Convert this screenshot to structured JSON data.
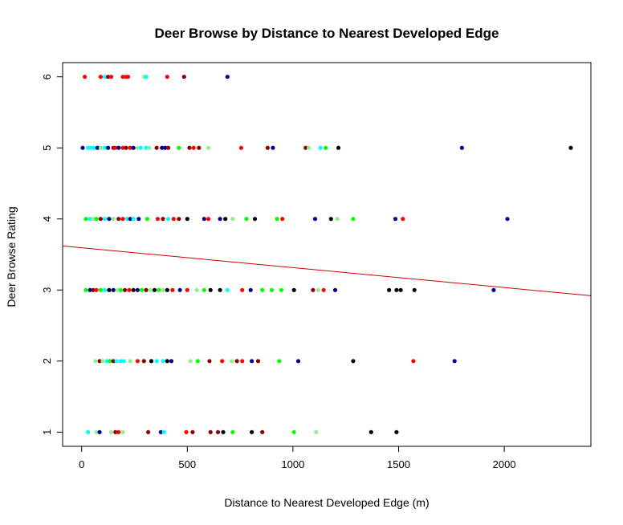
{
  "chart_data": {
    "type": "scatter",
    "title": "Deer Browse by Distance to Nearest Developed Edge",
    "xlabel": "Distance to Nearest Developed Edge (m)",
    "ylabel": "Deer Browse Rating",
    "xlim": [
      -90,
      2410
    ],
    "ylim": [
      0.8,
      6.2
    ],
    "xticks": [
      0,
      500,
      1000,
      1500,
      2000
    ],
    "yticks": [
      1,
      2,
      3,
      4,
      5,
      6
    ],
    "grid": false,
    "legend": "none",
    "regression_line": {
      "x": [
        -90,
        2410
      ],
      "y": [
        3.62,
        2.92
      ],
      "color": "#cc0000"
    },
    "colors": {
      "black": "#000000",
      "navy": "#00008b",
      "red": "#ff0000",
      "darkred": "#8b0000",
      "green": "#00ff00",
      "lightgreen": "#90ee90",
      "cyan": "#00ffff"
    },
    "points": [
      {
        "x": 15,
        "y": 6,
        "c": "red"
      },
      {
        "x": 90,
        "y": 6,
        "c": "red"
      },
      {
        "x": 110,
        "y": 6,
        "c": "cyan"
      },
      {
        "x": 125,
        "y": 6,
        "c": "darkred"
      },
      {
        "x": 140,
        "y": 6,
        "c": "red"
      },
      {
        "x": 195,
        "y": 6,
        "c": "red"
      },
      {
        "x": 210,
        "y": 6,
        "c": "red"
      },
      {
        "x": 220,
        "y": 6,
        "c": "red"
      },
      {
        "x": 295,
        "y": 6,
        "c": "lightgreen"
      },
      {
        "x": 305,
        "y": 6,
        "c": "cyan"
      },
      {
        "x": 405,
        "y": 6,
        "c": "red"
      },
      {
        "x": 485,
        "y": 6,
        "c": "darkred"
      },
      {
        "x": 690,
        "y": 6,
        "c": "navy"
      },
      {
        "x": 5,
        "y": 5,
        "c": "navy"
      },
      {
        "x": 30,
        "y": 5,
        "c": "cyan"
      },
      {
        "x": 45,
        "y": 5,
        "c": "cyan"
      },
      {
        "x": 60,
        "y": 5,
        "c": "cyan"
      },
      {
        "x": 75,
        "y": 5,
        "c": "navy"
      },
      {
        "x": 90,
        "y": 5,
        "c": "lightgreen"
      },
      {
        "x": 110,
        "y": 5,
        "c": "cyan"
      },
      {
        "x": 125,
        "y": 5,
        "c": "navy"
      },
      {
        "x": 150,
        "y": 5,
        "c": "darkred"
      },
      {
        "x": 160,
        "y": 5,
        "c": "red"
      },
      {
        "x": 175,
        "y": 5,
        "c": "navy"
      },
      {
        "x": 195,
        "y": 5,
        "c": "red"
      },
      {
        "x": 210,
        "y": 5,
        "c": "darkred"
      },
      {
        "x": 230,
        "y": 5,
        "c": "red"
      },
      {
        "x": 245,
        "y": 5,
        "c": "navy"
      },
      {
        "x": 265,
        "y": 5,
        "c": "lightgreen"
      },
      {
        "x": 280,
        "y": 5,
        "c": "cyan"
      },
      {
        "x": 305,
        "y": 5,
        "c": "cyan"
      },
      {
        "x": 320,
        "y": 5,
        "c": "lightgreen"
      },
      {
        "x": 355,
        "y": 5,
        "c": "darkred"
      },
      {
        "x": 380,
        "y": 5,
        "c": "navy"
      },
      {
        "x": 395,
        "y": 5,
        "c": "navy"
      },
      {
        "x": 410,
        "y": 5,
        "c": "darkred"
      },
      {
        "x": 460,
        "y": 5,
        "c": "green"
      },
      {
        "x": 510,
        "y": 5,
        "c": "darkred"
      },
      {
        "x": 530,
        "y": 5,
        "c": "red"
      },
      {
        "x": 555,
        "y": 5,
        "c": "darkred"
      },
      {
        "x": 600,
        "y": 5,
        "c": "lightgreen"
      },
      {
        "x": 755,
        "y": 5,
        "c": "red"
      },
      {
        "x": 880,
        "y": 5,
        "c": "darkred"
      },
      {
        "x": 905,
        "y": 5,
        "c": "navy"
      },
      {
        "x": 1060,
        "y": 5,
        "c": "darkred"
      },
      {
        "x": 1075,
        "y": 5,
        "c": "lightgreen"
      },
      {
        "x": 1130,
        "y": 5,
        "c": "cyan"
      },
      {
        "x": 1155,
        "y": 5,
        "c": "green"
      },
      {
        "x": 1215,
        "y": 5,
        "c": "black"
      },
      {
        "x": 1800,
        "y": 5,
        "c": "navy"
      },
      {
        "x": 2315,
        "y": 5,
        "c": "black"
      },
      {
        "x": 20,
        "y": 4,
        "c": "green"
      },
      {
        "x": 40,
        "y": 4,
        "c": "cyan"
      },
      {
        "x": 55,
        "y": 4,
        "c": "lightgreen"
      },
      {
        "x": 70,
        "y": 4,
        "c": "green"
      },
      {
        "x": 90,
        "y": 4,
        "c": "darkred"
      },
      {
        "x": 110,
        "y": 4,
        "c": "cyan"
      },
      {
        "x": 130,
        "y": 4,
        "c": "navy"
      },
      {
        "x": 150,
        "y": 4,
        "c": "lightgreen"
      },
      {
        "x": 175,
        "y": 4,
        "c": "darkred"
      },
      {
        "x": 195,
        "y": 4,
        "c": "red"
      },
      {
        "x": 215,
        "y": 4,
        "c": "cyan"
      },
      {
        "x": 230,
        "y": 4,
        "c": "navy"
      },
      {
        "x": 245,
        "y": 4,
        "c": "cyan"
      },
      {
        "x": 270,
        "y": 4,
        "c": "navy"
      },
      {
        "x": 310,
        "y": 4,
        "c": "green"
      },
      {
        "x": 360,
        "y": 4,
        "c": "red"
      },
      {
        "x": 385,
        "y": 4,
        "c": "darkred"
      },
      {
        "x": 410,
        "y": 4,
        "c": "cyan"
      },
      {
        "x": 435,
        "y": 4,
        "c": "red"
      },
      {
        "x": 460,
        "y": 4,
        "c": "darkred"
      },
      {
        "x": 500,
        "y": 4,
        "c": "black"
      },
      {
        "x": 580,
        "y": 4,
        "c": "navy"
      },
      {
        "x": 600,
        "y": 4,
        "c": "red"
      },
      {
        "x": 655,
        "y": 4,
        "c": "navy"
      },
      {
        "x": 680,
        "y": 4,
        "c": "black"
      },
      {
        "x": 715,
        "y": 4,
        "c": "lightgreen"
      },
      {
        "x": 780,
        "y": 4,
        "c": "green"
      },
      {
        "x": 820,
        "y": 4,
        "c": "black"
      },
      {
        "x": 925,
        "y": 4,
        "c": "green"
      },
      {
        "x": 950,
        "y": 4,
        "c": "red"
      },
      {
        "x": 1105,
        "y": 4,
        "c": "navy"
      },
      {
        "x": 1180,
        "y": 4,
        "c": "black"
      },
      {
        "x": 1210,
        "y": 4,
        "c": "lightgreen"
      },
      {
        "x": 1285,
        "y": 4,
        "c": "green"
      },
      {
        "x": 1485,
        "y": 4,
        "c": "navy"
      },
      {
        "x": 1520,
        "y": 4,
        "c": "red"
      },
      {
        "x": 2015,
        "y": 4,
        "c": "navy"
      },
      {
        "x": 20,
        "y": 3,
        "c": "green"
      },
      {
        "x": 40,
        "y": 3,
        "c": "navy"
      },
      {
        "x": 55,
        "y": 3,
        "c": "darkred"
      },
      {
        "x": 70,
        "y": 3,
        "c": "red"
      },
      {
        "x": 90,
        "y": 3,
        "c": "green"
      },
      {
        "x": 110,
        "y": 3,
        "c": "cyan"
      },
      {
        "x": 130,
        "y": 3,
        "c": "black"
      },
      {
        "x": 150,
        "y": 3,
        "c": "navy"
      },
      {
        "x": 170,
        "y": 3,
        "c": "lightgreen"
      },
      {
        "x": 185,
        "y": 3,
        "c": "green"
      },
      {
        "x": 205,
        "y": 3,
        "c": "darkred"
      },
      {
        "x": 225,
        "y": 3,
        "c": "red"
      },
      {
        "x": 245,
        "y": 3,
        "c": "black"
      },
      {
        "x": 265,
        "y": 3,
        "c": "navy"
      },
      {
        "x": 285,
        "y": 3,
        "c": "green"
      },
      {
        "x": 305,
        "y": 3,
        "c": "darkred"
      },
      {
        "x": 325,
        "y": 3,
        "c": "lightgreen"
      },
      {
        "x": 345,
        "y": 3,
        "c": "black"
      },
      {
        "x": 365,
        "y": 3,
        "c": "green"
      },
      {
        "x": 385,
        "y": 3,
        "c": "lightgreen"
      },
      {
        "x": 405,
        "y": 3,
        "c": "black"
      },
      {
        "x": 430,
        "y": 3,
        "c": "red"
      },
      {
        "x": 465,
        "y": 3,
        "c": "navy"
      },
      {
        "x": 500,
        "y": 3,
        "c": "red"
      },
      {
        "x": 545,
        "y": 3,
        "c": "lightgreen"
      },
      {
        "x": 580,
        "y": 3,
        "c": "green"
      },
      {
        "x": 610,
        "y": 3,
        "c": "black"
      },
      {
        "x": 655,
        "y": 3,
        "c": "black"
      },
      {
        "x": 690,
        "y": 3,
        "c": "cyan"
      },
      {
        "x": 760,
        "y": 3,
        "c": "red"
      },
      {
        "x": 800,
        "y": 3,
        "c": "navy"
      },
      {
        "x": 855,
        "y": 3,
        "c": "green"
      },
      {
        "x": 900,
        "y": 3,
        "c": "green"
      },
      {
        "x": 945,
        "y": 3,
        "c": "green"
      },
      {
        "x": 1005,
        "y": 3,
        "c": "black"
      },
      {
        "x": 1095,
        "y": 3,
        "c": "darkred"
      },
      {
        "x": 1120,
        "y": 3,
        "c": "lightgreen"
      },
      {
        "x": 1145,
        "y": 3,
        "c": "red"
      },
      {
        "x": 1200,
        "y": 3,
        "c": "navy"
      },
      {
        "x": 1455,
        "y": 3,
        "c": "black"
      },
      {
        "x": 1490,
        "y": 3,
        "c": "black"
      },
      {
        "x": 1510,
        "y": 3,
        "c": "black"
      },
      {
        "x": 1575,
        "y": 3,
        "c": "black"
      },
      {
        "x": 1950,
        "y": 3,
        "c": "navy"
      },
      {
        "x": 65,
        "y": 2,
        "c": "lightgreen"
      },
      {
        "x": 85,
        "y": 2,
        "c": "darkred"
      },
      {
        "x": 100,
        "y": 2,
        "c": "lightgreen"
      },
      {
        "x": 120,
        "y": 2,
        "c": "cyan"
      },
      {
        "x": 135,
        "y": 2,
        "c": "green"
      },
      {
        "x": 150,
        "y": 2,
        "c": "darkred"
      },
      {
        "x": 165,
        "y": 2,
        "c": "cyan"
      },
      {
        "x": 185,
        "y": 2,
        "c": "cyan"
      },
      {
        "x": 200,
        "y": 2,
        "c": "cyan"
      },
      {
        "x": 230,
        "y": 2,
        "c": "lightgreen"
      },
      {
        "x": 265,
        "y": 2,
        "c": "red"
      },
      {
        "x": 295,
        "y": 2,
        "c": "darkred"
      },
      {
        "x": 330,
        "y": 2,
        "c": "black"
      },
      {
        "x": 355,
        "y": 2,
        "c": "cyan"
      },
      {
        "x": 385,
        "y": 2,
        "c": "cyan"
      },
      {
        "x": 405,
        "y": 2,
        "c": "black"
      },
      {
        "x": 425,
        "y": 2,
        "c": "navy"
      },
      {
        "x": 515,
        "y": 2,
        "c": "lightgreen"
      },
      {
        "x": 550,
        "y": 2,
        "c": "green"
      },
      {
        "x": 605,
        "y": 2,
        "c": "darkred"
      },
      {
        "x": 665,
        "y": 2,
        "c": "red"
      },
      {
        "x": 710,
        "y": 2,
        "c": "lightgreen"
      },
      {
        "x": 735,
        "y": 2,
        "c": "darkred"
      },
      {
        "x": 760,
        "y": 2,
        "c": "red"
      },
      {
        "x": 805,
        "y": 2,
        "c": "navy"
      },
      {
        "x": 835,
        "y": 2,
        "c": "darkred"
      },
      {
        "x": 935,
        "y": 2,
        "c": "green"
      },
      {
        "x": 1025,
        "y": 2,
        "c": "navy"
      },
      {
        "x": 1285,
        "y": 2,
        "c": "black"
      },
      {
        "x": 1570,
        "y": 2,
        "c": "red"
      },
      {
        "x": 1765,
        "y": 2,
        "c": "navy"
      },
      {
        "x": 30,
        "y": 1,
        "c": "cyan"
      },
      {
        "x": 70,
        "y": 1,
        "c": "lightgreen"
      },
      {
        "x": 85,
        "y": 1,
        "c": "navy"
      },
      {
        "x": 140,
        "y": 1,
        "c": "lightgreen"
      },
      {
        "x": 160,
        "y": 1,
        "c": "darkred"
      },
      {
        "x": 175,
        "y": 1,
        "c": "red"
      },
      {
        "x": 195,
        "y": 1,
        "c": "lightgreen"
      },
      {
        "x": 315,
        "y": 1,
        "c": "darkred"
      },
      {
        "x": 375,
        "y": 1,
        "c": "navy"
      },
      {
        "x": 390,
        "y": 1,
        "c": "cyan"
      },
      {
        "x": 495,
        "y": 1,
        "c": "red"
      },
      {
        "x": 525,
        "y": 1,
        "c": "darkred"
      },
      {
        "x": 610,
        "y": 1,
        "c": "darkred"
      },
      {
        "x": 645,
        "y": 1,
        "c": "darkred"
      },
      {
        "x": 670,
        "y": 1,
        "c": "black"
      },
      {
        "x": 715,
        "y": 1,
        "c": "green"
      },
      {
        "x": 805,
        "y": 1,
        "c": "black"
      },
      {
        "x": 855,
        "y": 1,
        "c": "darkred"
      },
      {
        "x": 1005,
        "y": 1,
        "c": "green"
      },
      {
        "x": 1110,
        "y": 1,
        "c": "lightgreen"
      },
      {
        "x": 1370,
        "y": 1,
        "c": "black"
      },
      {
        "x": 1490,
        "y": 1,
        "c": "black"
      }
    ]
  }
}
